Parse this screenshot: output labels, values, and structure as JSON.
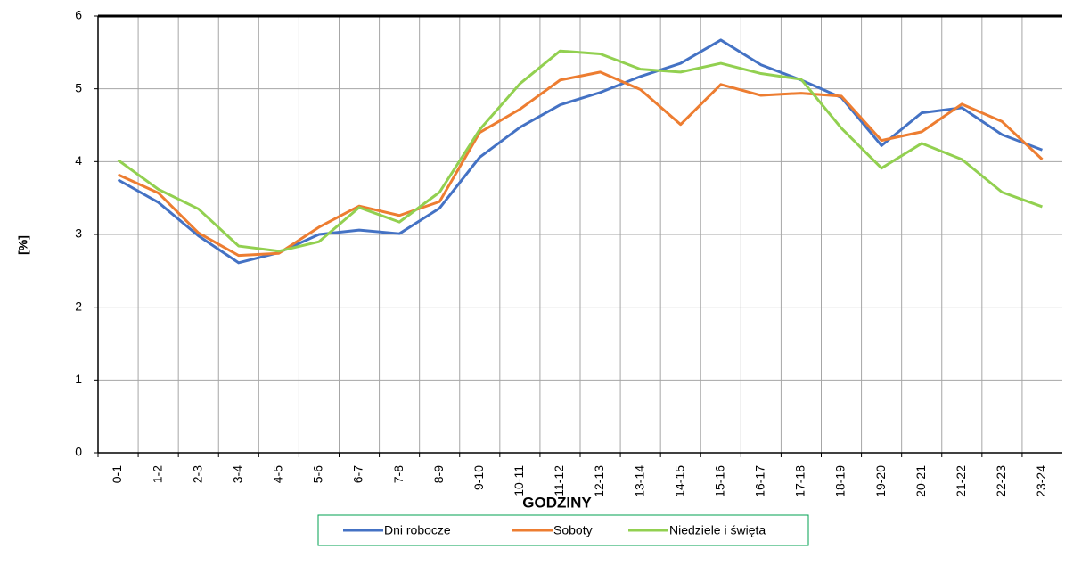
{
  "chart_data": {
    "type": "line",
    "y_label": "[%]",
    "x_label": "GODZINY",
    "categories": [
      "0-1",
      "1-2",
      "2-3",
      "3-4",
      "4-5",
      "5-6",
      "6-7",
      "7-8",
      "8-9",
      "9-10",
      "10-11",
      "11-12",
      "12-13",
      "13-14",
      "14-15",
      "15-16",
      "16-17",
      "17-18",
      "18-19",
      "19-20",
      "20-21",
      "21-22",
      "22-23",
      "23-24"
    ],
    "series": [
      {
        "name": "Dni robocze",
        "color": "#4472c4",
        "values": [
          3.75,
          3.44,
          2.98,
          2.61,
          2.75,
          3.0,
          3.06,
          3.01,
          3.36,
          4.06,
          4.47,
          4.78,
          4.95,
          5.17,
          5.35,
          5.67,
          5.33,
          5.12,
          4.88,
          4.22,
          4.67,
          4.74,
          4.37,
          4.16
        ]
      },
      {
        "name": "Soboty",
        "color": "#ed7d31",
        "values": [
          3.82,
          3.57,
          3.02,
          2.71,
          2.74,
          3.1,
          3.39,
          3.26,
          3.45,
          4.4,
          4.72,
          5.12,
          5.23,
          4.99,
          4.51,
          5.06,
          4.91,
          4.94,
          4.9,
          4.29,
          4.41,
          4.79,
          4.55,
          4.03
        ]
      },
      {
        "name": "Niedziele i święta",
        "color": "#92d050",
        "values": [
          4.02,
          3.62,
          3.35,
          2.84,
          2.77,
          2.9,
          3.37,
          3.17,
          3.58,
          4.44,
          5.07,
          5.52,
          5.48,
          5.27,
          5.23,
          5.35,
          5.21,
          5.13,
          4.46,
          3.91,
          4.25,
          4.03,
          3.58,
          3.38
        ]
      }
    ],
    "ylim": [
      0,
      6
    ],
    "yticks": [
      0,
      1,
      2,
      3,
      4,
      5,
      6
    ],
    "grid": true
  }
}
